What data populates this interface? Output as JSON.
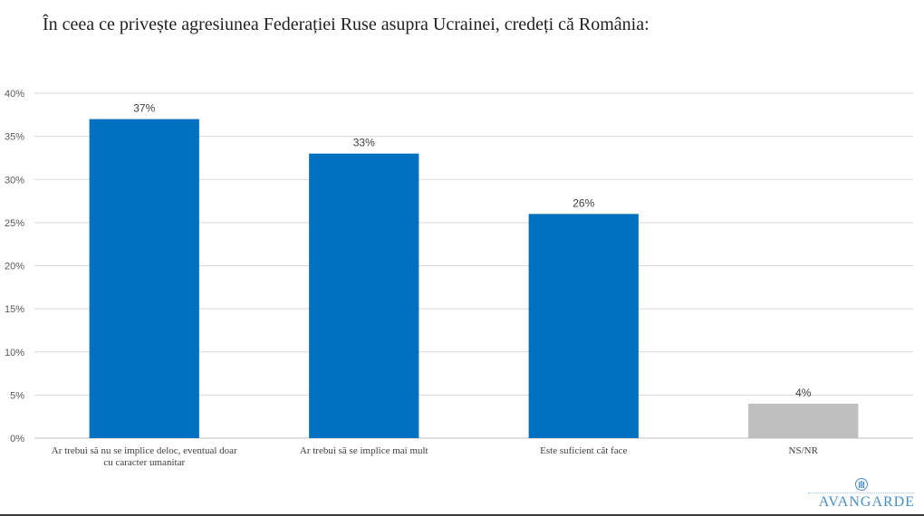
{
  "title": "În ceea ce privește agresiunea Federației Ruse asupra Ucrainei, credeți că România:",
  "logo": {
    "name": "AVANGARDE",
    "icon": "avangarde-column-logo-icon"
  },
  "colors": {
    "bar_primary": "#0070c0",
    "bar_secondary": "#bfbfbf",
    "grid": "#d9d9d9",
    "axis": "#bfbfbf",
    "brand": "#4a8ec6"
  },
  "chart_data": {
    "type": "bar",
    "title": "",
    "xlabel": "",
    "ylabel": "",
    "ylim": [
      0,
      40
    ],
    "y_ticks": [
      "0%",
      "5%",
      "10%",
      "15%",
      "20%",
      "25%",
      "30%",
      "35%",
      "40%"
    ],
    "grid": true,
    "legend": "none",
    "categories": [
      [
        "Ar trebui să nu se implice deloc, eventual doar",
        "cu caracter umanitar"
      ],
      [
        "Ar trebui să se implice mai mult"
      ],
      [
        "Este suficient cât face"
      ],
      [
        "NS/NR"
      ]
    ],
    "values": [
      37,
      33,
      26,
      4
    ],
    "data_labels": [
      "37%",
      "33%",
      "26%",
      "4%"
    ],
    "bar_colors": [
      "#0070c0",
      "#0070c0",
      "#0070c0",
      "#bfbfbf"
    ]
  }
}
